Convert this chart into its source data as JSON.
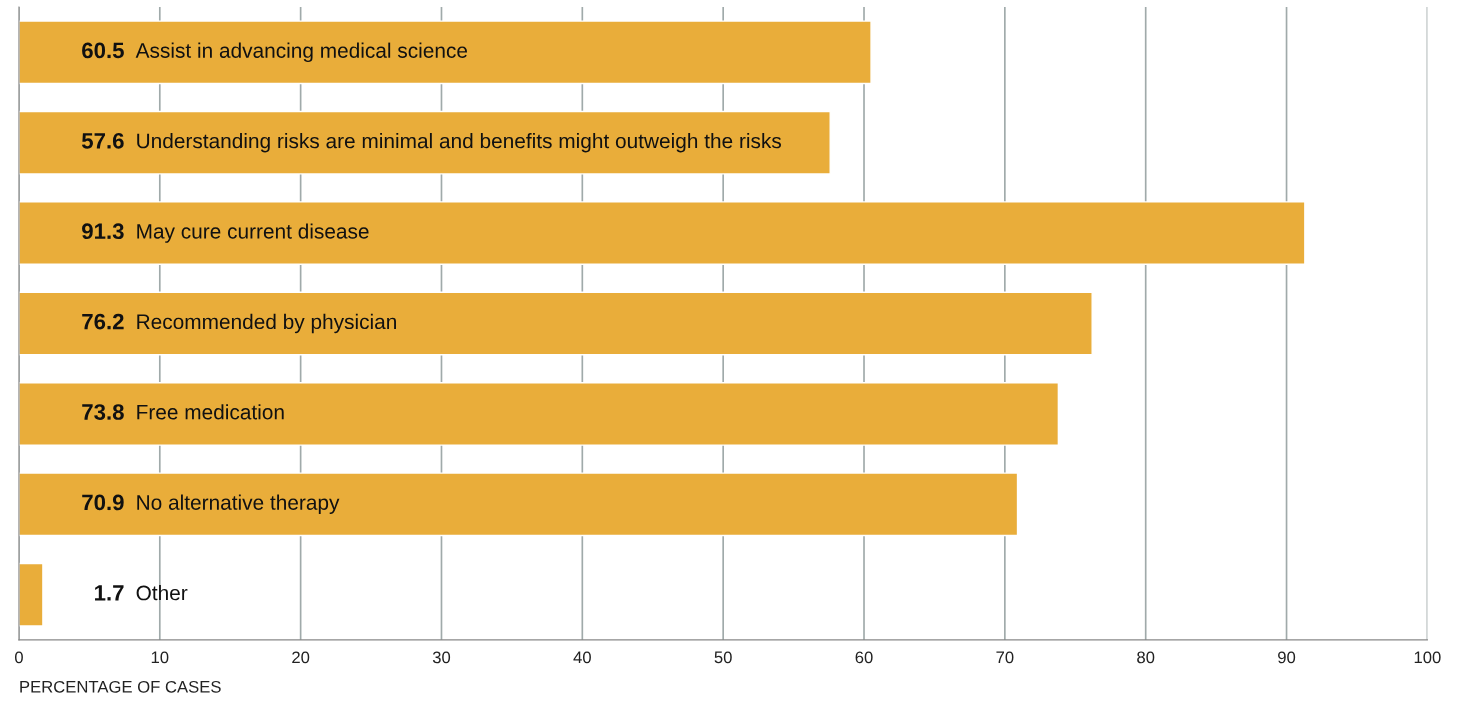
{
  "chart_data": {
    "type": "bar",
    "orientation": "horizontal",
    "xlabel": "PERCENTAGE OF CASES",
    "categories": [
      "Assist in advancing medical science",
      "Understanding risks are minimal and benefits might outweigh the risks",
      "May cure current disease",
      "Recommended by physician",
      "Free medication",
      "No alternative therapy",
      "Other"
    ],
    "values": [
      60.5,
      57.6,
      91.3,
      76.2,
      73.8,
      70.9,
      1.7
    ],
    "color": "#e9ad3a",
    "data_labels": true,
    "xlim": [
      0,
      100
    ],
    "xticks": [
      0,
      10,
      20,
      30,
      40,
      50,
      60,
      70,
      80,
      90,
      100
    ],
    "grid": "x"
  }
}
